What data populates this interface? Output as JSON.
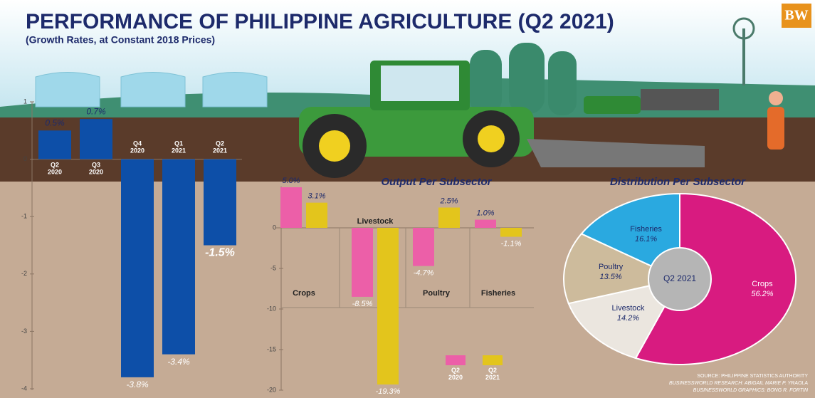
{
  "header": {
    "title": "PERFORMANCE OF PHILIPPINE AGRICULTURE (Q2 2021)",
    "subtitle": "(Growth Rates, at Constant 2018 Prices)",
    "logo": "BW"
  },
  "footer": {
    "source": [
      "SOURCE: PHILIPPINE STATISTICS AUTHORITY",
      "BUSINESSWORLD RESEARCH: ABIGAIL MARIE P. YRAOLA",
      "BUSINESSWORLD GRAPHICS: BONG R. FORTIN"
    ]
  },
  "chart_data": [
    {
      "type": "bar",
      "categories": [
        "Q2 2020",
        "Q3 2020",
        "Q4 2020",
        "Q1 2021",
        "Q2 2021"
      ],
      "values": [
        0.5,
        0.7,
        -3.8,
        -3.4,
        -1.5
      ],
      "value_labels": [
        "0.5%",
        "0.7%",
        "-3.8%",
        "-3.4%",
        "-1.5%"
      ],
      "color": "#0d4fa8",
      "ylim": [
        -4,
        1
      ],
      "yticks": [
        1,
        0,
        -1,
        -2,
        -3,
        -4
      ]
    },
    {
      "type": "grouped_bar",
      "title": "Output Per Subsector",
      "categories": [
        "Crops",
        "Livestock",
        "Poultry",
        "Fisheries"
      ],
      "series": [
        {
          "name": "Q2 2020",
          "color": "#ec5fa8",
          "values": [
            5.0,
            -8.5,
            -4.7,
            1.0
          ],
          "value_labels": [
            "5.0%",
            "-8.5%",
            "-4.7%",
            "1.0%"
          ]
        },
        {
          "name": "Q2 2021",
          "color": "#e3c51c",
          "values": [
            3.1,
            -19.3,
            2.5,
            -1.1
          ],
          "value_labels": [
            "3.1%",
            "-19.3%",
            "2.5%",
            "-1.1%"
          ]
        }
      ],
      "ylim": [
        -20,
        5
      ],
      "yticks": [
        0,
        -5,
        -10,
        -15,
        -20
      ]
    },
    {
      "type": "pie",
      "title": "Distribution Per Subsector",
      "center_label": "Q2 2021",
      "categories": [
        "Crops",
        "Livestock",
        "Poultry",
        "Fisheries"
      ],
      "values": [
        56.2,
        14.2,
        13.5,
        16.1
      ],
      "value_labels": [
        "56.2%",
        "14.2%",
        "13.5%",
        "16.1%"
      ],
      "colors": [
        "#d81b80",
        "#ebe6df",
        "#cdbb9c",
        "#2aa9e0"
      ]
    }
  ]
}
